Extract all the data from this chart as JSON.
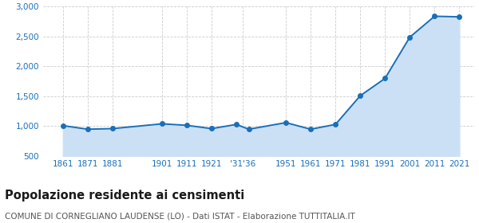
{
  "years": [
    1861,
    1871,
    1881,
    1901,
    1911,
    1921,
    1931,
    1936,
    1951,
    1961,
    1971,
    1981,
    1991,
    2001,
    2011,
    2021
  ],
  "population": [
    1010,
    950,
    960,
    1040,
    1015,
    960,
    1030,
    950,
    1060,
    950,
    1030,
    1510,
    1800,
    2490,
    2840,
    2830
  ],
  "line_color": "#1a6fba",
  "fill_color": "#cce0f5",
  "marker_color": "#1a6fba",
  "bg_color": "#ffffff",
  "grid_color": "#cccccc",
  "title": "Popolazione residente ai censimenti",
  "subtitle": "COMUNE DI CORNEGLIANO LAUDENSE (LO) - Dati ISTAT - Elaborazione TUTTITALIA.IT",
  "ylim": [
    500,
    3000
  ],
  "yticks": [
    500,
    1000,
    1500,
    2000,
    2500,
    3000
  ],
  "title_fontsize": 10.5,
  "subtitle_fontsize": 7.5,
  "tick_color": "#1a6fba",
  "tick_fontsize": 7.5,
  "x_tick_positions": [
    1861,
    1871,
    1881,
    1901,
    1911,
    1921,
    1933.5,
    1951,
    1961,
    1971,
    1981,
    1991,
    2001,
    2011,
    2021
  ],
  "x_tick_labels": [
    "1861",
    "1871",
    "1881",
    "1901",
    "1911",
    "1921",
    "'31'36",
    "1951",
    "1961",
    "1971",
    "1981",
    "1991",
    "2001",
    "2011",
    "2021"
  ],
  "xlim_left": 1853,
  "xlim_right": 2027
}
